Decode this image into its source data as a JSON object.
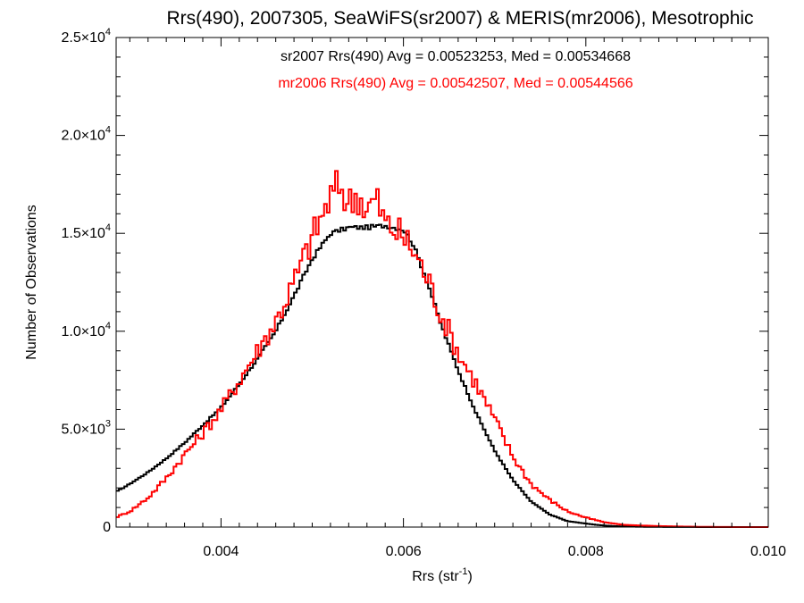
{
  "chart_data": {
    "type": "line",
    "title": "Rrs(490), 2007305, SeaWiFS(sr2007) & MERIS(mr2006), Mesotrophic",
    "xlabel": {
      "text": "Rrs (str",
      "sup": "-1",
      "tail": ")"
    },
    "ylabel": "Number of Observations",
    "xlim": [
      0.00285,
      0.01
    ],
    "ylim": [
      0,
      25000
    ],
    "grid": false,
    "x_ticks": [
      {
        "value": 0.004,
        "label": "0.004"
      },
      {
        "value": 0.006,
        "label": "0.006"
      },
      {
        "value": 0.008,
        "label": "0.008"
      },
      {
        "value": 0.01,
        "label": "0.010"
      }
    ],
    "y_ticks": [
      {
        "value": 0,
        "mant": "0",
        "exp": ""
      },
      {
        "value": 5000,
        "mant": "5.0×10",
        "exp": "3"
      },
      {
        "value": 10000,
        "mant": "1.0×10",
        "exp": "4"
      },
      {
        "value": 15000,
        "mant": "1.5×10",
        "exp": "4"
      },
      {
        "value": 20000,
        "mant": "2.0×10",
        "exp": "4"
      },
      {
        "value": 25000,
        "mant": "2.5×10",
        "exp": "4"
      }
    ],
    "annotations": [
      {
        "text": "sr2007 Rrs(490) Avg = 0.00523253, Med = 0.00534668",
        "color": "#000000"
      },
      {
        "text": "mr2006 Rrs(490) Avg = 0.00542507, Med = 0.00544566",
        "color": "#ff0000"
      }
    ],
    "series": [
      {
        "color": "#000000",
        "x": [
          0.00285,
          0.003,
          0.0032,
          0.0034,
          0.0036,
          0.0038,
          0.004,
          0.0042,
          0.0044,
          0.0046,
          0.0048,
          0.005,
          0.0052,
          0.0054,
          0.0056,
          0.0058,
          0.006,
          0.0061,
          0.0062,
          0.0063,
          0.0064,
          0.0066,
          0.0068,
          0.007,
          0.0072,
          0.0074,
          0.0076,
          0.0078,
          0.008,
          0.0081,
          0.0082,
          0.0083,
          0.0084,
          0.0086,
          0.0088,
          0.009,
          0.0092,
          0.0094,
          0.0096,
          0.0098,
          0.01
        ],
        "y": [
          1800,
          2200,
          2800,
          3500,
          4300,
          5200,
          6100,
          7300,
          8600,
          10000,
          11800,
          13700,
          15000,
          15300,
          15300,
          15400,
          15200,
          14500,
          13300,
          12000,
          10500,
          8000,
          5800,
          3900,
          2400,
          1300,
          650,
          300,
          180,
          120,
          80,
          50,
          30,
          15,
          10,
          5,
          3,
          2,
          1,
          0,
          0
        ]
      },
      {
        "color": "#ff0000",
        "x": [
          0.00285,
          0.003,
          0.0032,
          0.0034,
          0.0036,
          0.0038,
          0.004,
          0.0042,
          0.0044,
          0.0046,
          0.0048,
          0.005,
          0.0052,
          0.0053,
          0.0054,
          0.0055,
          0.0056,
          0.0057,
          0.0058,
          0.0059,
          0.006,
          0.0061,
          0.0062,
          0.0063,
          0.0064,
          0.0065,
          0.0066,
          0.0068,
          0.007,
          0.0072,
          0.0074,
          0.0076,
          0.0078,
          0.008,
          0.0082,
          0.0084,
          0.0086,
          0.0088,
          0.009,
          0.0092,
          0.0094,
          0.0096,
          0.0098,
          0.01
        ],
        "y": [
          500,
          800,
          1500,
          2500,
          3700,
          4800,
          6000,
          7500,
          9000,
          10500,
          12500,
          14800,
          16800,
          17500,
          16500,
          17000,
          16200,
          16800,
          15500,
          15200,
          14800,
          14200,
          13300,
          12300,
          11000,
          10000,
          8900,
          7300,
          5500,
          3600,
          2200,
          1400,
          800,
          480,
          250,
          120,
          80,
          50,
          30,
          15,
          8,
          3,
          1,
          0
        ]
      }
    ]
  }
}
